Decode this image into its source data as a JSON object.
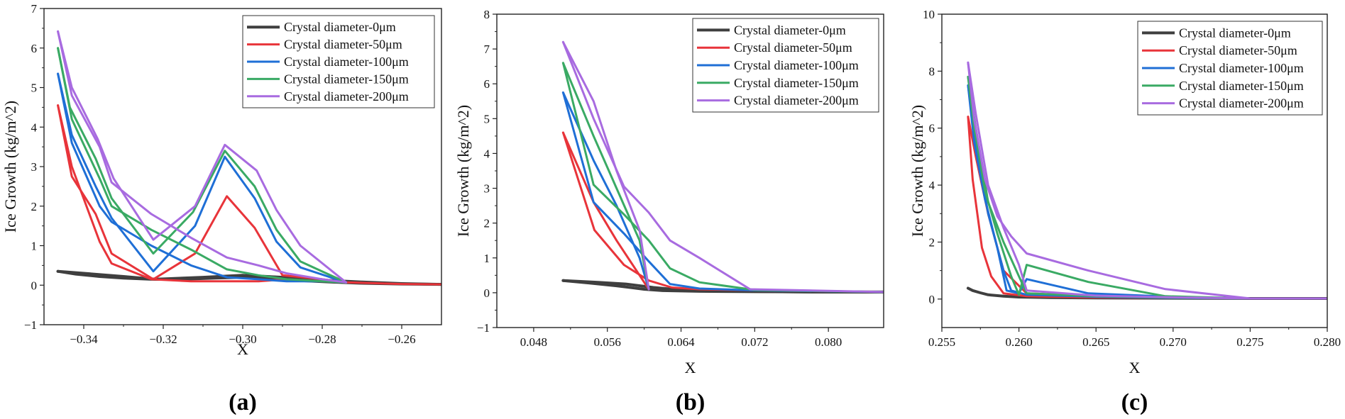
{
  "colors": [
    "#3f3f3f",
    "#e8343a",
    "#1f6fd6",
    "#3aaa64",
    "#a86be0"
  ],
  "chart_data": [
    {
      "type": "line",
      "panel_label": "(a)",
      "xlabel": "X",
      "ylabel": "Ice Growth (kg/m^2)",
      "xlim": [
        -0.35,
        -0.25
      ],
      "ylim": [
        -1,
        7
      ],
      "xticks": [
        -0.34,
        -0.32,
        -0.3,
        -0.28,
        -0.26
      ],
      "xtick_labels": [
        "−0.34",
        "−0.32",
        "−0.30",
        "−0.28",
        "−0.26"
      ],
      "yticks": [
        -1,
        0,
        1,
        2,
        3,
        4,
        5,
        6,
        7
      ],
      "ytick_labels": [
        "−1",
        "0",
        "1",
        "2",
        "3",
        "4",
        "5",
        "6",
        "7"
      ],
      "legend": "top-right",
      "series": [
        {
          "name": "Crystal diameter-0μm",
          "x": [
            -0.3465,
            -0.342,
            -0.336,
            -0.33,
            -0.323,
            -0.315,
            -0.307,
            -0.3,
            -0.293,
            -0.286,
            -0.278,
            -0.27,
            -0.26,
            -0.25
          ],
          "y": [
            0.35,
            0.28,
            0.22,
            0.18,
            0.15,
            0.15,
            0.18,
            0.2,
            0.18,
            0.12,
            0.08,
            0.05,
            0.03,
            0.02
          ]
        },
        {
          "name": "Crystal diameter-0μm",
          "x": [
            -0.3465,
            -0.34,
            -0.33,
            -0.322,
            -0.31,
            -0.3,
            -0.29,
            -0.28,
            -0.27,
            -0.26,
            -0.25
          ],
          "y": [
            0.35,
            0.3,
            0.22,
            0.15,
            0.2,
            0.25,
            0.2,
            0.13,
            0.08,
            0.04,
            0.02
          ]
        },
        {
          "name": "Crystal diameter-50μm",
          "x": [
            -0.3465,
            -0.343,
            -0.337,
            -0.333,
            -0.3225,
            -0.312,
            -0.304,
            -0.297,
            -0.29,
            -0.28,
            -0.274,
            -0.26,
            -0.25
          ],
          "y": [
            4.55,
            2.75,
            1.8,
            0.8,
            0.15,
            0.8,
            2.25,
            1.45,
            0.25,
            0.15,
            0.07,
            0.03,
            0.02
          ]
        },
        {
          "name": "Crystal diameter-50μm",
          "x": [
            -0.3465,
            -0.343,
            -0.336,
            -0.333,
            -0.323,
            -0.313,
            -0.304,
            -0.296,
            -0.289,
            -0.28,
            -0.274
          ],
          "y": [
            4.55,
            3.0,
            1.1,
            0.55,
            0.15,
            0.1,
            0.1,
            0.1,
            0.15,
            0.1,
            0.07
          ]
        },
        {
          "name": "Crystal diameter-100μm",
          "x": [
            -0.3465,
            -0.343,
            -0.337,
            -0.333,
            -0.3225,
            -0.312,
            -0.3045,
            -0.297,
            -0.2915,
            -0.2855,
            -0.274
          ],
          "y": [
            5.35,
            3.8,
            2.5,
            1.7,
            0.35,
            1.5,
            3.25,
            2.2,
            1.1,
            0.45,
            0.07
          ]
        },
        {
          "name": "Crystal diameter-100μm",
          "x": [
            -0.3465,
            -0.343,
            -0.336,
            -0.333,
            -0.323,
            -0.313,
            -0.304,
            -0.296,
            -0.289,
            -0.28,
            -0.274
          ],
          "y": [
            5.35,
            3.6,
            2.0,
            1.6,
            1.0,
            0.5,
            0.2,
            0.15,
            0.1,
            0.1,
            0.07
          ]
        },
        {
          "name": "Crystal diameter-150μm",
          "x": [
            -0.3465,
            -0.3435,
            -0.337,
            -0.333,
            -0.3225,
            -0.3125,
            -0.3045,
            -0.297,
            -0.2915,
            -0.2855,
            -0.274
          ],
          "y": [
            6.0,
            4.5,
            3.2,
            2.2,
            0.8,
            1.85,
            3.4,
            2.5,
            1.4,
            0.6,
            0.07
          ]
        },
        {
          "name": "Crystal diameter-150μm",
          "x": [
            -0.3465,
            -0.343,
            -0.336,
            -0.333,
            -0.323,
            -0.313,
            -0.304,
            -0.296,
            -0.289,
            -0.28,
            -0.274
          ],
          "y": [
            6.0,
            4.2,
            2.7,
            2.0,
            1.4,
            0.9,
            0.4,
            0.25,
            0.15,
            0.1,
            0.07
          ]
        },
        {
          "name": "Crystal diameter-200μm",
          "x": [
            -0.3465,
            -0.343,
            -0.3365,
            -0.3325,
            -0.3225,
            -0.312,
            -0.3045,
            -0.2965,
            -0.2915,
            -0.2855,
            -0.274
          ],
          "y": [
            6.42,
            5.0,
            3.7,
            2.7,
            1.15,
            2.0,
            3.55,
            2.9,
            1.9,
            1.0,
            0.07
          ]
        },
        {
          "name": "Crystal diameter-200μm",
          "x": [
            -0.3465,
            -0.343,
            -0.336,
            -0.333,
            -0.323,
            -0.313,
            -0.304,
            -0.296,
            -0.289,
            -0.28,
            -0.274
          ],
          "y": [
            6.42,
            4.8,
            3.5,
            2.6,
            1.8,
            1.2,
            0.7,
            0.5,
            0.3,
            0.15,
            0.07
          ]
        }
      ]
    },
    {
      "type": "line",
      "panel_label": "(b)",
      "xlabel": "X",
      "ylabel": "Ice Growth (kg/m^2)",
      "xlim": [
        0.044,
        0.086
      ],
      "ylim": [
        -1,
        8
      ],
      "xticks": [
        0.048,
        0.056,
        0.064,
        0.072,
        0.08
      ],
      "xtick_labels": [
        "0.048",
        "0.056",
        "0.064",
        "0.072",
        "0.080"
      ],
      "yticks": [
        -1,
        0,
        1,
        2,
        3,
        4,
        5,
        6,
        7,
        8
      ],
      "ytick_labels": [
        "−1",
        "0",
        "1",
        "2",
        "3",
        "4",
        "5",
        "6",
        "7",
        "8"
      ],
      "legend": "top-right",
      "series": [
        {
          "name": "Crystal diameter-0μm",
          "x": [
            0.0512,
            0.054,
            0.057,
            0.06,
            0.062,
            0.066,
            0.072,
            0.08,
            0.086
          ],
          "y": [
            0.35,
            0.28,
            0.2,
            0.1,
            0.06,
            0.04,
            0.03,
            0.02,
            0.02
          ]
        },
        {
          "name": "Crystal diameter-0μm",
          "x": [
            0.0512,
            0.055,
            0.058,
            0.061,
            0.064,
            0.07,
            0.078,
            0.086
          ],
          "y": [
            0.35,
            0.3,
            0.25,
            0.15,
            0.08,
            0.04,
            0.02,
            0.02
          ]
        },
        {
          "name": "Crystal diameter-50μm",
          "x": [
            0.0512,
            0.0546,
            0.0578,
            0.0605,
            0.063,
            0.066,
            0.072,
            0.086
          ],
          "y": [
            4.6,
            1.8,
            0.8,
            0.35,
            0.15,
            0.1,
            0.07,
            0.02
          ]
        },
        {
          "name": "Crystal diameter-50μm",
          "x": [
            0.0512,
            0.0545,
            0.057,
            0.0595,
            0.0605
          ],
          "y": [
            4.6,
            2.6,
            1.5,
            0.5,
            0.1
          ]
        },
        {
          "name": "Crystal diameter-100μm",
          "x": [
            0.0512,
            0.0545,
            0.0578,
            0.0605,
            0.0628,
            0.066,
            0.072,
            0.086
          ],
          "y": [
            5.75,
            2.6,
            1.7,
            0.9,
            0.25,
            0.12,
            0.07,
            0.02
          ]
        },
        {
          "name": "Crystal diameter-100μm",
          "x": [
            0.0512,
            0.0545,
            0.057,
            0.0595,
            0.0605
          ],
          "y": [
            5.75,
            3.8,
            2.5,
            1.0,
            0.1
          ]
        },
        {
          "name": "Crystal diameter-150μm",
          "x": [
            0.0512,
            0.0545,
            0.0578,
            0.0605,
            0.0628,
            0.066,
            0.072,
            0.086
          ],
          "y": [
            6.6,
            3.1,
            2.25,
            1.5,
            0.7,
            0.3,
            0.08,
            0.02
          ]
        },
        {
          "name": "Crystal diameter-150μm",
          "x": [
            0.0512,
            0.0545,
            0.057,
            0.0595,
            0.0605
          ],
          "y": [
            6.6,
            4.5,
            3.0,
            1.5,
            0.1
          ]
        },
        {
          "name": "Crystal diameter-200μm",
          "x": [
            0.0512,
            0.0545,
            0.0578,
            0.0605,
            0.0628,
            0.066,
            0.0715,
            0.086
          ],
          "y": [
            7.2,
            5.0,
            3.05,
            2.3,
            1.5,
            1.0,
            0.1,
            0.02
          ]
        },
        {
          "name": "Crystal diameter-200μm",
          "x": [
            0.0512,
            0.0545,
            0.057,
            0.0595,
            0.0605
          ],
          "y": [
            7.2,
            5.5,
            3.5,
            1.8,
            0.1
          ]
        }
      ]
    },
    {
      "type": "line",
      "panel_label": "(c)",
      "xlabel": "X",
      "ylabel": "Ice Growth (kg/m^2)",
      "xlim": [
        0.255,
        0.28
      ],
      "ylim": [
        -1,
        10
      ],
      "xticks": [
        0.255,
        0.26,
        0.265,
        0.27,
        0.275,
        0.28
      ],
      "xtick_labels": [
        "0.255",
        "0.260",
        "0.265",
        "0.270",
        "0.275",
        "0.280"
      ],
      "yticks": [
        0,
        2,
        4,
        6,
        8,
        10
      ],
      "ytick_labels": [
        "0",
        "2",
        "4",
        "6",
        "8",
        "10"
      ],
      "legend": "top-right",
      "series": [
        {
          "name": "Crystal diameter-0μm",
          "x": [
            0.2567,
            0.257,
            0.2575,
            0.258,
            0.259,
            0.26,
            0.262,
            0.265,
            0.27,
            0.275,
            0.28
          ],
          "y": [
            0.38,
            0.3,
            0.22,
            0.15,
            0.1,
            0.07,
            0.05,
            0.04,
            0.03,
            0.02,
            0.02
          ]
        },
        {
          "name": "Crystal diameter-50μm",
          "x": [
            0.2567,
            0.257,
            0.2576,
            0.2582,
            0.259,
            0.2605,
            0.264,
            0.27,
            0.275,
            0.28
          ],
          "y": [
            6.4,
            4.2,
            1.8,
            0.8,
            0.2,
            0.1,
            0.06,
            0.04,
            0.02,
            0.02
          ]
        },
        {
          "name": "Crystal diameter-50μm",
          "x": [
            0.2567,
            0.2572,
            0.258,
            0.259,
            0.2605,
            0.265,
            0.27,
            0.275
          ],
          "y": [
            6.4,
            5.0,
            3.0,
            1.0,
            0.2,
            0.1,
            0.05,
            0.02
          ]
        },
        {
          "name": "Crystal diameter-100μm",
          "x": [
            0.2567,
            0.2571,
            0.2578,
            0.2586,
            0.2592,
            0.26,
            0.2605,
            0.2645,
            0.27,
            0.275,
            0.28
          ],
          "y": [
            7.5,
            5.5,
            3.5,
            1.8,
            0.3,
            0.2,
            0.7,
            0.2,
            0.08,
            0.02,
            0.02
          ]
        },
        {
          "name": "Crystal diameter-100μm",
          "x": [
            0.2567,
            0.2572,
            0.258,
            0.259,
            0.2595,
            0.2605,
            0.265,
            0.27,
            0.275
          ],
          "y": [
            7.5,
            5.5,
            3.0,
            1.0,
            0.3,
            0.15,
            0.08,
            0.04,
            0.02
          ]
        },
        {
          "name": "Crystal diameter-150μm",
          "x": [
            0.2567,
            0.2571,
            0.2578,
            0.2586,
            0.2595,
            0.26,
            0.2605,
            0.2645,
            0.2695,
            0.275,
            0.28
          ],
          "y": [
            7.8,
            6.0,
            3.8,
            2.3,
            0.8,
            0.15,
            1.2,
            0.6,
            0.1,
            0.02,
            0.02
          ]
        },
        {
          "name": "Crystal diameter-150μm",
          "x": [
            0.2567,
            0.2572,
            0.258,
            0.259,
            0.26,
            0.2605,
            0.265,
            0.27,
            0.275
          ],
          "y": [
            7.8,
            6.0,
            3.4,
            2.0,
            0.8,
            0.2,
            0.1,
            0.05,
            0.02
          ]
        },
        {
          "name": "Crystal diameter-200μm",
          "x": [
            0.2567,
            0.2571,
            0.2578,
            0.2586,
            0.2595,
            0.2605,
            0.2645,
            0.2695,
            0.275,
            0.28
          ],
          "y": [
            8.3,
            6.3,
            4.2,
            2.9,
            2.2,
            1.6,
            1.0,
            0.35,
            0.02,
            0.02
          ]
        },
        {
          "name": "Crystal diameter-200μm",
          "x": [
            0.2567,
            0.2572,
            0.258,
            0.259,
            0.26,
            0.2605,
            0.265,
            0.27,
            0.275
          ],
          "y": [
            8.3,
            6.5,
            4.0,
            2.5,
            1.2,
            0.3,
            0.12,
            0.06,
            0.02
          ]
        }
      ]
    }
  ],
  "legend_entries": [
    "Crystal diameter-0μm",
    "Crystal diameter-50μm",
    "Crystal diameter-100μm",
    "Crystal diameter-150μm",
    "Crystal diameter-200μm"
  ]
}
